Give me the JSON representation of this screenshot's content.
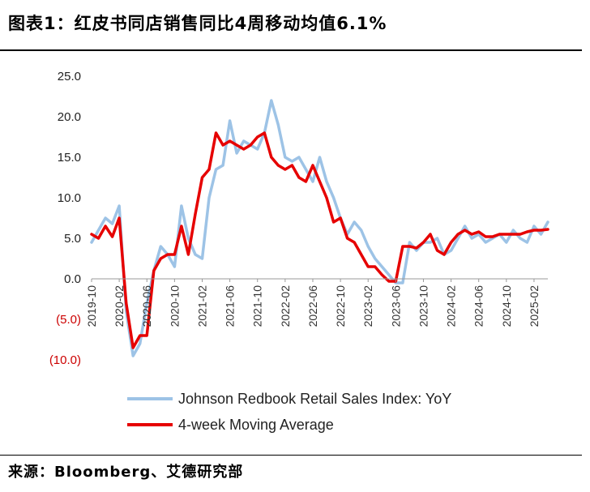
{
  "title": "图表1：红皮书同店销售同比4周移动均值6.1%",
  "source": "来源：Bloomberg、艾德研究部",
  "chart_data": {
    "type": "line",
    "title": "图表1：红皮书同店销售同比4周移动均值6.1%",
    "xlabel": "",
    "ylabel": "",
    "ylim": [
      -10,
      25
    ],
    "yticks": [
      25,
      20,
      15,
      10,
      5,
      0,
      -5,
      -10
    ],
    "ytick_labels": [
      "25.0",
      "20.0",
      "15.0",
      "10.0",
      "5.0",
      "0.0",
      "(5.0)",
      "(10.0)"
    ],
    "negative_color": "#cc0000",
    "x_tick_labels": [
      "2019-10",
      "2020-02",
      "2020-06",
      "2020-10",
      "2021-02",
      "2021-06",
      "2021-10",
      "2022-02",
      "2022-06",
      "2022-10",
      "2023-02",
      "2023-06",
      "2023-10",
      "2024-02",
      "2024-06",
      "2024-10",
      "2025-02"
    ],
    "legend_position": "bottom",
    "grid": false,
    "series": [
      {
        "name": "Johnson Redbook Retail Sales Index: YoY",
        "color": "#9dc3e6",
        "x": [
          "2019-10",
          "2019-11",
          "2019-12",
          "2020-01",
          "2020-02",
          "2020-03",
          "2020-04",
          "2020-05",
          "2020-06",
          "2020-07",
          "2020-08",
          "2020-09",
          "2020-10",
          "2020-11",
          "2020-12",
          "2021-01",
          "2021-02",
          "2021-03",
          "2021-04",
          "2021-05",
          "2021-06",
          "2021-07",
          "2021-08",
          "2021-09",
          "2021-10",
          "2021-11",
          "2021-12",
          "2022-01",
          "2022-02",
          "2022-03",
          "2022-04",
          "2022-05",
          "2022-06",
          "2022-07",
          "2022-08",
          "2022-09",
          "2022-10",
          "2022-11",
          "2022-12",
          "2023-01",
          "2023-02",
          "2023-03",
          "2023-04",
          "2023-05",
          "2023-06",
          "2023-07",
          "2023-08",
          "2023-09",
          "2023-10",
          "2023-11",
          "2023-12",
          "2024-01",
          "2024-02",
          "2024-03",
          "2024-04",
          "2024-05",
          "2024-06",
          "2024-07",
          "2024-08",
          "2024-09",
          "2024-10",
          "2024-11",
          "2024-12",
          "2025-01",
          "2025-02",
          "2025-03",
          "2025-04"
        ],
        "values": [
          4.5,
          6.0,
          7.5,
          6.8,
          9.0,
          -4.0,
          -9.5,
          -8.0,
          -3.0,
          1.0,
          4.0,
          3.0,
          1.5,
          9.0,
          5.0,
          3.0,
          2.5,
          10.0,
          13.5,
          14.0,
          19.5,
          15.5,
          17.0,
          16.5,
          16.0,
          18.0,
          22.0,
          19.0,
          15.0,
          14.5,
          15.0,
          13.5,
          12.0,
          15.0,
          12.0,
          10.0,
          7.5,
          5.5,
          7.0,
          6.0,
          4.0,
          2.5,
          1.5,
          0.5,
          -0.5,
          -0.5,
          4.5,
          3.5,
          4.5,
          4.5,
          5.0,
          3.0,
          3.5,
          5.0,
          6.5,
          5.0,
          5.5,
          4.5,
          5.0,
          5.5,
          4.5,
          6.0,
          5.0,
          4.5,
          6.5,
          5.5,
          7.0
        ]
      },
      {
        "name": "4-week Moving Average",
        "color": "#e60000",
        "x": [
          "2019-10",
          "2019-11",
          "2019-12",
          "2020-01",
          "2020-02",
          "2020-03",
          "2020-04",
          "2020-05",
          "2020-06",
          "2020-07",
          "2020-08",
          "2020-09",
          "2020-10",
          "2020-11",
          "2020-12",
          "2021-01",
          "2021-02",
          "2021-03",
          "2021-04",
          "2021-05",
          "2021-06",
          "2021-07",
          "2021-08",
          "2021-09",
          "2021-10",
          "2021-11",
          "2021-12",
          "2022-01",
          "2022-02",
          "2022-03",
          "2022-04",
          "2022-05",
          "2022-06",
          "2022-07",
          "2022-08",
          "2022-09",
          "2022-10",
          "2022-11",
          "2022-12",
          "2023-01",
          "2023-02",
          "2023-03",
          "2023-04",
          "2023-05",
          "2023-06",
          "2023-07",
          "2023-08",
          "2023-09",
          "2023-10",
          "2023-11",
          "2023-12",
          "2024-01",
          "2024-02",
          "2024-03",
          "2024-04",
          "2024-05",
          "2024-06",
          "2024-07",
          "2024-08",
          "2024-09",
          "2024-10",
          "2024-11",
          "2024-12",
          "2025-01",
          "2025-02",
          "2025-03",
          "2025-04"
        ],
        "values": [
          5.5,
          5.0,
          6.5,
          5.2,
          7.5,
          -3.0,
          -8.5,
          -7.0,
          -7.0,
          1.0,
          2.5,
          3.0,
          3.0,
          6.5,
          3.0,
          8.0,
          12.5,
          13.5,
          18.0,
          16.5,
          17.0,
          16.5,
          16.0,
          16.5,
          17.5,
          18.0,
          15.0,
          14.0,
          13.5,
          14.0,
          12.5,
          12.0,
          14.0,
          12.0,
          10.0,
          7.0,
          7.5,
          5.0,
          4.5,
          3.0,
          1.5,
          1.5,
          0.5,
          -0.3,
          -0.3,
          4.0,
          4.0,
          3.8,
          4.5,
          5.5,
          3.5,
          3.0,
          4.5,
          5.5,
          6.0,
          5.5,
          5.8,
          5.2,
          5.2,
          5.5,
          5.5,
          5.5,
          5.5,
          5.8,
          6.0,
          6.0,
          6.1
        ]
      }
    ]
  }
}
